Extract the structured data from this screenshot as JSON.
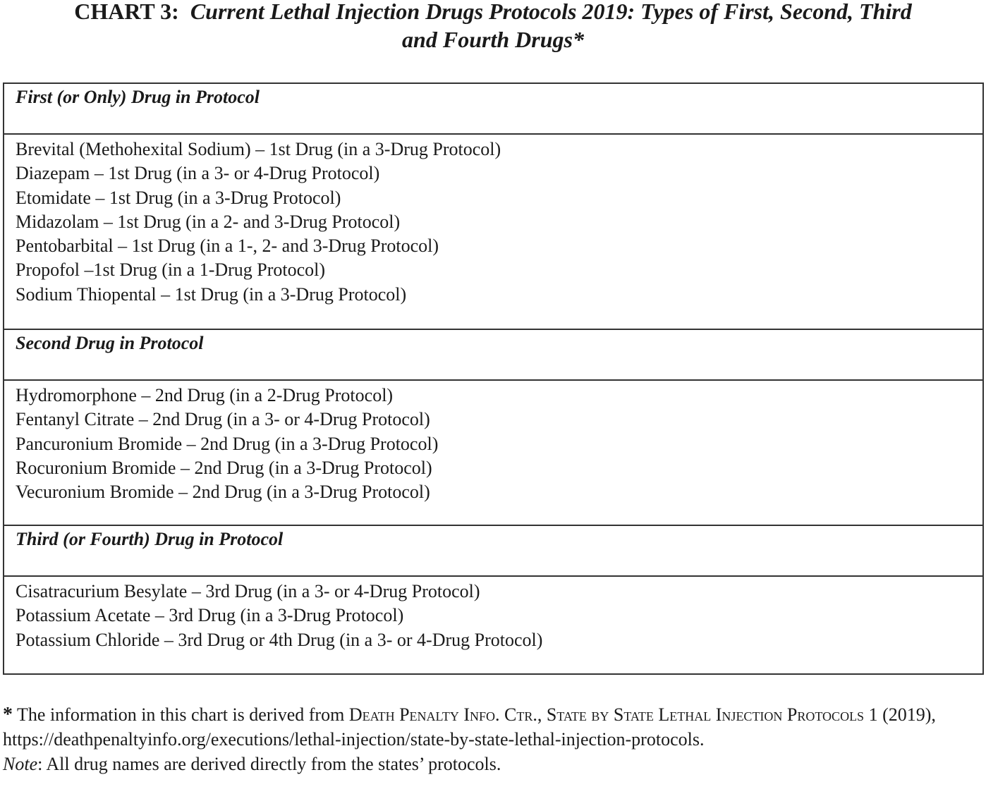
{
  "title": {
    "label": "CHART 3:",
    "text_line1": "Current Lethal Injection Drugs Protocols 2019: Types of First, Second, Third",
    "text_line2": "and Fourth Drugs*"
  },
  "sections": [
    {
      "heading": "First (or Only) Drug in Protocol",
      "items": [
        "Brevital (Methohexital Sodium) – 1st Drug (in a 3-Drug Protocol)",
        "Diazepam – 1st Drug (in a 3- or 4-Drug Protocol)",
        "Etomidate – 1st Drug (in a 3-Drug Protocol)",
        "Midazolam – 1st Drug (in a 2- and 3-Drug Protocol)",
        "Pentobarbital – 1st Drug (in a 1-, 2- and 3-Drug Protocol)",
        "Propofol –1st Drug (in a 1-Drug Protocol)",
        "Sodium Thiopental – 1st Drug (in a 3-Drug Protocol)"
      ]
    },
    {
      "heading": "Second Drug in Protocol",
      "items": [
        "Hydromorphone – 2nd Drug (in a 2-Drug Protocol)",
        "Fentanyl Citrate – 2nd Drug (in a 3- or 4-Drug Protocol)",
        "Pancuronium Bromide – 2nd Drug (in a 3-Drug Protocol)",
        "Rocuronium Bromide – 2nd Drug (in a 3-Drug Protocol)",
        "Vecuronium Bromide – 2nd Drug (in a 3-Drug Protocol)"
      ]
    },
    {
      "heading": "Third (or Fourth) Drug in Protocol",
      "items": [
        "Cisatracurium Besylate – 3rd Drug (in a 3- or 4-Drug Protocol)",
        "Potassium Acetate – 3rd Drug (in a 3-Drug Protocol)",
        "Potassium Chloride – 3rd Drug or 4th Drug (in a 3- or 4-Drug Protocol)"
      ]
    }
  ],
  "footnote": {
    "star": "*",
    "text1": " The information in this chart is derived from ",
    "source": "Death Penalty Info. Ctr.",
    "text2": ", ",
    "work": "State by State Lethal Injection Protocols",
    "text3": " 1 (2019), https://deathpenaltyinfo.org/executions/lethal-injection/state-by-state-lethal-injection-protocols.",
    "note_label": "Note",
    "note_text": ": All drug names are derived directly from the states’ protocols."
  }
}
